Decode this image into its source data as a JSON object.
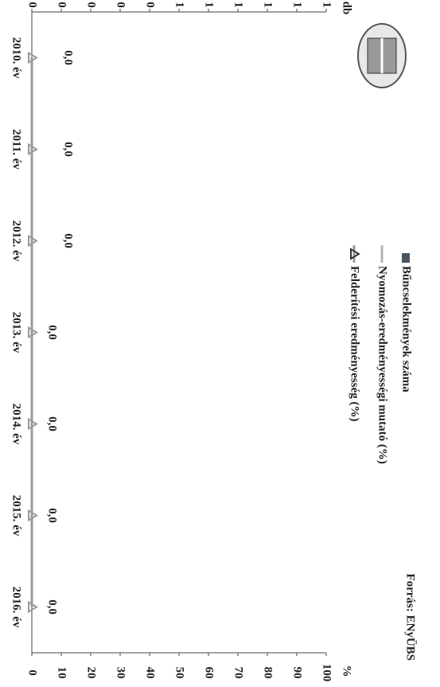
{
  "chart_data": {
    "type": "bar",
    "source": "Forrás: ENyÜBS",
    "y_axis_label": "db",
    "y2_axis_label": "%",
    "categories": [
      "2010. év",
      "2011. év",
      "2012. év",
      "2013. év",
      "2014. év",
      "2015. év",
      "2016. év"
    ],
    "series": [
      {
        "name": "Bűncselekmények száma",
        "type": "bar",
        "color": "#4a5562",
        "values": [
          0,
          0,
          0,
          0,
          0,
          0,
          0
        ]
      },
      {
        "name": "Nyomozás-eredményességi mutató (%)",
        "type": "line",
        "axis": "y2",
        "color": "#b4b4b4",
        "values": [
          0,
          0,
          0,
          0,
          0,
          0,
          0
        ]
      },
      {
        "name": "Felderítési eredményesség (%)",
        "type": "line",
        "marker": "triangle",
        "axis": "y2",
        "color": "#9a9a9a",
        "values": [
          0,
          0,
          0,
          0,
          0,
          0,
          0
        ],
        "value_labels": [
          "0,0",
          "0,0",
          "0,0",
          "0,0",
          "0,0",
          "0,0",
          "0,0"
        ]
      }
    ],
    "ylim": [
      0,
      1
    ],
    "yticks": [
      0,
      {
        "value": 0.1,
        "label": "0"
      },
      {
        "value": 0.2,
        "label": "0"
      },
      {
        "value": 0.3,
        "label": "0"
      },
      {
        "value": 0.4,
        "label": "0"
      },
      {
        "value": 0.5,
        "label": "1"
      },
      {
        "value": 0.6,
        "label": "1"
      },
      {
        "value": 0.7,
        "label": "1"
      },
      {
        "value": 0.8,
        "label": "1"
      },
      {
        "value": 0.9,
        "label": "1"
      },
      1
    ],
    "y2lim": [
      0,
      100
    ],
    "y2ticks": [
      0,
      10,
      20,
      30,
      40,
      50,
      60,
      70,
      80,
      90,
      100
    ]
  }
}
